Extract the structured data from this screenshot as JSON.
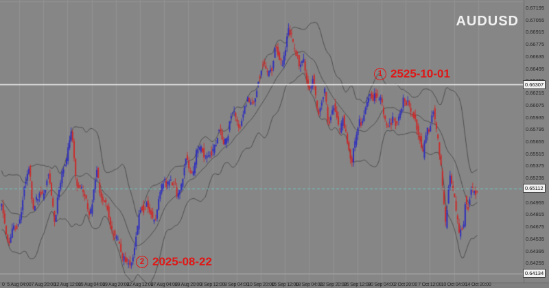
{
  "title": "AUDUSD",
  "colors": {
    "background": "#868686",
    "axis_strip_bottom": "#7f7f7f",
    "axis_strip_right": "#858585",
    "grid": "#929292",
    "separator": "#6b6b6b",
    "band": "#4d4d4d",
    "bull_candle": "#2f2fbe",
    "bear_candle": "#cc2a2a",
    "resistance_line": "#f5f5f5",
    "bid_line": "#70cbc4",
    "support_line": "#b2b2b2",
    "annotation_red": "#e01616",
    "axis_text": "#242424",
    "watermark_text": "#f1f1f1"
  },
  "price_axis": {
    "labels": [
      "0.67195",
      "0.67055",
      "0.66915",
      "0.66775",
      "0.66635",
      "0.66495",
      "0.66355",
      "0.66215",
      "0.66075",
      "0.65935",
      "0.65795",
      "0.65655",
      "0.65515",
      "0.65375",
      "0.65235",
      "0.65095",
      "0.64955",
      "0.64815",
      "0.64675",
      "0.64535",
      "0.64395",
      "0.64255",
      "0.64115"
    ],
    "line_labels": [
      {
        "label": "0.66307",
        "value": 0.66307
      },
      {
        "label": "0.65112",
        "value": 0.65112
      },
      {
        "label": "0.64134",
        "value": 0.64134
      }
    ]
  },
  "time_axis": {
    "partial_left_label": "0",
    "labels": [
      "5 Aug 04:00",
      "7 Aug 20:00",
      "12 Aug 12:00",
      "15 Aug 04:00",
      "19 Aug 20:00",
      "22 Aug 12:00",
      "27 Aug 04:00",
      "29 Aug 20:00",
      "3 Sep 12:00",
      "8 Sep 04:00",
      "10 Sep 20:00",
      "15 Sep 12:00",
      "18 Sep 04:00",
      "22 Sep 20:00",
      "25 Sep 12:00",
      "30 Sep 04:00",
      "2 Oct 20:00",
      "7 Oct 12:00",
      "10 Oct 04:00",
      "14 Oct 20:00"
    ]
  },
  "annotations": [
    {
      "marker": "1",
      "text": "2525-10-01"
    },
    {
      "marker": "2",
      "text": "2025-08-22"
    }
  ],
  "chart_data": {
    "type": "candlestick",
    "symbol": "AUDUSD",
    "title": "AUDUSD",
    "ylim": [
      0.6403,
      0.6728
    ],
    "n_bars": 316,
    "grid": "vertical",
    "horizontal_lines": [
      {
        "price": 0.66307,
        "style": "solid",
        "role": "resistance",
        "linked_annotation": "2525-10-01"
      },
      {
        "price": 0.65112,
        "style": "dashed",
        "role": "current-bid"
      },
      {
        "price": 0.64134,
        "style": "solid",
        "role": "support",
        "linked_annotation": "2025-08-22"
      }
    ],
    "bands_indicator": {
      "period": 20,
      "deviation": 2,
      "lines": [
        "upper",
        "middle",
        "lower"
      ]
    },
    "price_waypoints": [
      [
        -20,
        0.654
      ],
      [
        -10,
        0.647
      ],
      [
        -4,
        0.652
      ],
      [
        0,
        0.649
      ],
      [
        4,
        0.6454
      ],
      [
        11,
        0.647
      ],
      [
        19,
        0.6534
      ],
      [
        22,
        0.6485
      ],
      [
        32,
        0.6526
      ],
      [
        36,
        0.6481
      ],
      [
        47,
        0.6573
      ],
      [
        50,
        0.6528
      ],
      [
        60,
        0.6485
      ],
      [
        64,
        0.6526
      ],
      [
        67,
        0.65
      ],
      [
        72,
        0.648
      ],
      [
        78,
        0.6449
      ],
      [
        86,
        0.6415
      ],
      [
        92,
        0.6478
      ],
      [
        97,
        0.6502
      ],
      [
        101,
        0.647
      ],
      [
        106,
        0.6505
      ],
      [
        113,
        0.6523
      ],
      [
        117,
        0.6505
      ],
      [
        123,
        0.654
      ],
      [
        127,
        0.6528
      ],
      [
        133,
        0.6559
      ],
      [
        138,
        0.6546
      ],
      [
        144,
        0.6577
      ],
      [
        148,
        0.6561
      ],
      [
        155,
        0.6598
      ],
      [
        159,
        0.6583
      ],
      [
        164,
        0.6622
      ],
      [
        168,
        0.6605
      ],
      [
        173,
        0.6653
      ],
      [
        177,
        0.6637
      ],
      [
        182,
        0.6674
      ],
      [
        186,
        0.6658
      ],
      [
        191,
        0.6688
      ],
      [
        195,
        0.6672
      ],
      [
        198,
        0.6648
      ],
      [
        201,
        0.666
      ],
      [
        205,
        0.6626
      ],
      [
        207,
        0.6638
      ],
      [
        211,
        0.6602
      ],
      [
        215,
        0.6615
      ],
      [
        217,
        0.659
      ],
      [
        221,
        0.6602
      ],
      [
        224,
        0.6585
      ],
      [
        227,
        0.6596
      ],
      [
        230,
        0.6559
      ],
      [
        233,
        0.6549
      ],
      [
        237,
        0.6575
      ],
      [
        240,
        0.6594
      ],
      [
        245,
        0.6616
      ],
      [
        248,
        0.6627
      ],
      [
        252,
        0.661
      ],
      [
        256,
        0.6587
      ],
      [
        259,
        0.6577
      ],
      [
        263,
        0.6592
      ],
      [
        267,
        0.6608
      ],
      [
        270,
        0.662
      ],
      [
        274,
        0.659
      ],
      [
        278,
        0.657
      ],
      [
        280,
        0.6549
      ],
      [
        284,
        0.658
      ],
      [
        287,
        0.6608
      ],
      [
        289,
        0.657
      ],
      [
        292,
        0.654
      ],
      [
        295,
        0.6474
      ],
      [
        298,
        0.6525
      ],
      [
        301,
        0.65
      ],
      [
        303,
        0.647
      ],
      [
        304,
        0.6448
      ],
      [
        307,
        0.647
      ],
      [
        308,
        0.6505
      ],
      [
        310,
        0.6495
      ],
      [
        312,
        0.6508
      ],
      [
        315,
        0.65112
      ]
    ],
    "x_axis_labels": [
      "5 Aug 04:00",
      "7 Aug 20:00",
      "12 Aug 12:00",
      "15 Aug 04:00",
      "19 Aug 20:00",
      "22 Aug 12:00",
      "27 Aug 04:00",
      "29 Aug 20:00",
      "3 Sep 12:00",
      "8 Sep 04:00",
      "10 Sep 20:00",
      "15 Sep 12:00",
      "18 Sep 04:00",
      "22 Sep 20:00",
      "25 Sep 12:00",
      "30 Sep 04:00",
      "2 Oct 20:00",
      "7 Oct 12:00",
      "10 Oct 04:00",
      "14 Oct 20:00"
    ],
    "y_axis_labels": [
      "0.67195",
      "0.67055",
      "0.66915",
      "0.66775",
      "0.66635",
      "0.66495",
      "0.66355",
      "0.66215",
      "0.66075",
      "0.65935",
      "0.65795",
      "0.65655",
      "0.65515",
      "0.65375",
      "0.65235",
      "0.65095",
      "0.64955",
      "0.64815",
      "0.64675",
      "0.64535",
      "0.64395",
      "0.64255",
      "0.64115"
    ]
  }
}
